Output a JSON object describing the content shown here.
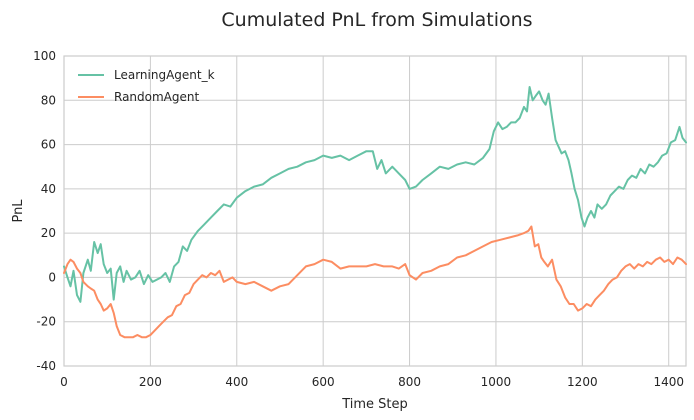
{
  "chart_data": {
    "type": "line",
    "title": "Cumulated PnL from Simulations",
    "xlabel": "Time Step",
    "ylabel": "PnL",
    "xlim": [
      0,
      1440
    ],
    "ylim": [
      -40,
      100
    ],
    "xticks": [
      0,
      200,
      400,
      600,
      800,
      1000,
      1200,
      1400
    ],
    "yticks": [
      -40,
      -20,
      0,
      20,
      40,
      60,
      80,
      100
    ],
    "grid": true,
    "legend_position": "top-left",
    "series": [
      {
        "name": "LearningAgent_k",
        "color": "#66c2a5",
        "x": [
          0,
          8,
          15,
          22,
          30,
          38,
          45,
          55,
          62,
          70,
          78,
          85,
          92,
          100,
          108,
          115,
          122,
          130,
          138,
          145,
          155,
          165,
          175,
          185,
          195,
          205,
          215,
          225,
          235,
          245,
          255,
          265,
          275,
          285,
          295,
          310,
          325,
          340,
          355,
          370,
          385,
          400,
          420,
          440,
          460,
          480,
          500,
          520,
          540,
          560,
          580,
          600,
          620,
          640,
          660,
          680,
          700,
          715,
          725,
          735,
          745,
          760,
          775,
          790,
          800,
          815,
          830,
          850,
          870,
          890,
          910,
          930,
          950,
          970,
          985,
          995,
          1005,
          1015,
          1025,
          1035,
          1045,
          1055,
          1065,
          1072,
          1078,
          1085,
          1092,
          1100,
          1108,
          1115,
          1122,
          1130,
          1138,
          1145,
          1152,
          1160,
          1168,
          1175,
          1182,
          1190,
          1198,
          1205,
          1212,
          1220,
          1228,
          1235,
          1245,
          1255,
          1265,
          1275,
          1285,
          1295,
          1305,
          1315,
          1325,
          1335,
          1345,
          1355,
          1365,
          1375,
          1385,
          1395,
          1405,
          1415,
          1425,
          1432,
          1440
        ],
        "y": [
          5,
          0,
          -4,
          3,
          -8,
          -11,
          2,
          8,
          3,
          16,
          11,
          15,
          6,
          2,
          4,
          -10,
          2,
          5,
          -2,
          3,
          -1,
          0,
          3,
          -3,
          1,
          -2,
          -1,
          0,
          2,
          -2,
          5,
          7,
          14,
          12,
          17,
          21,
          24,
          27,
          30,
          33,
          32,
          36,
          39,
          41,
          42,
          45,
          47,
          49,
          50,
          52,
          53,
          55,
          54,
          55,
          53,
          55,
          57,
          57,
          49,
          53,
          47,
          50,
          47,
          44,
          40,
          41,
          44,
          47,
          50,
          49,
          51,
          52,
          51,
          54,
          58,
          66,
          70,
          67,
          68,
          70,
          70,
          72,
          77,
          75,
          86,
          80,
          82,
          84,
          80,
          78,
          83,
          72,
          62,
          59,
          56,
          57,
          53,
          47,
          40,
          35,
          27,
          23,
          27,
          30,
          27,
          33,
          31,
          33,
          37,
          39,
          41,
          40,
          44,
          46,
          45,
          49,
          47,
          51,
          50,
          52,
          55,
          56,
          61,
          62,
          68,
          63,
          61
        ]
      },
      {
        "name": "RandomAgent",
        "color": "#fc8d62",
        "x": [
          0,
          8,
          15,
          22,
          30,
          38,
          45,
          55,
          62,
          70,
          78,
          85,
          92,
          100,
          108,
          115,
          122,
          130,
          140,
          150,
          160,
          170,
          180,
          190,
          200,
          210,
          220,
          230,
          240,
          250,
          260,
          270,
          280,
          290,
          300,
          310,
          320,
          330,
          340,
          350,
          360,
          370,
          380,
          390,
          400,
          420,
          440,
          460,
          480,
          500,
          520,
          540,
          560,
          580,
          600,
          620,
          640,
          660,
          680,
          700,
          720,
          740,
          760,
          775,
          790,
          800,
          815,
          830,
          850,
          870,
          890,
          910,
          930,
          950,
          970,
          990,
          1010,
          1030,
          1050,
          1065,
          1075,
          1082,
          1090,
          1098,
          1105,
          1112,
          1120,
          1130,
          1140,
          1150,
          1160,
          1170,
          1180,
          1190,
          1200,
          1210,
          1220,
          1230,
          1240,
          1250,
          1260,
          1270,
          1280,
          1290,
          1300,
          1310,
          1320,
          1330,
          1340,
          1350,
          1360,
          1370,
          1380,
          1390,
          1400,
          1410,
          1420,
          1430,
          1440
        ],
        "y": [
          2,
          6,
          8,
          7,
          4,
          2,
          -2,
          -4,
          -5,
          -6,
          -10,
          -12,
          -15,
          -14,
          -12,
          -16,
          -22,
          -26,
          -27,
          -27,
          -27,
          -26,
          -27,
          -27,
          -26,
          -24,
          -22,
          -20,
          -18,
          -17,
          -13,
          -12,
          -8,
          -7,
          -3,
          -1,
          1,
          0,
          2,
          1,
          3,
          -2,
          -1,
          0,
          -2,
          -3,
          -2,
          -4,
          -6,
          -4,
          -3,
          1,
          5,
          6,
          8,
          7,
          4,
          5,
          5,
          5,
          6,
          5,
          5,
          4,
          6,
          1,
          -1,
          2,
          3,
          5,
          6,
          9,
          10,
          12,
          14,
          16,
          17,
          18,
          19,
          20,
          21,
          23,
          14,
          15,
          9,
          7,
          5,
          8,
          -1,
          -4,
          -9,
          -12,
          -12,
          -15,
          -14,
          -12,
          -13,
          -10,
          -8,
          -6,
          -3,
          -1,
          0,
          3,
          5,
          6,
          4,
          6,
          5,
          7,
          6,
          8,
          9,
          7,
          8,
          6,
          9,
          8,
          6
        ]
      }
    ]
  }
}
